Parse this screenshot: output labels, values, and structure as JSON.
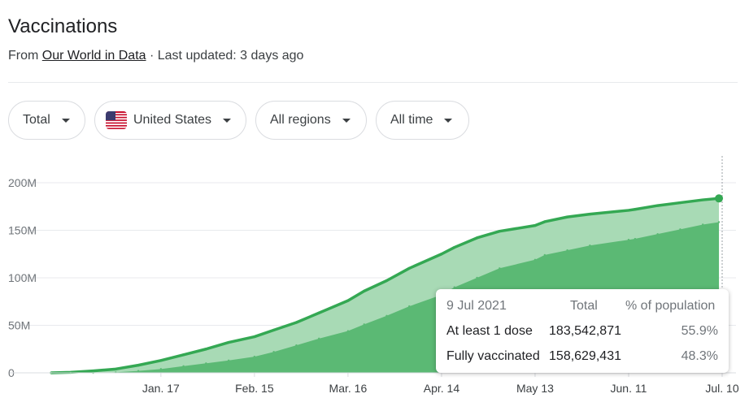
{
  "header": {
    "title": "Vaccinations",
    "source_prefix": "From",
    "source_link": "Our World in Data",
    "updated": "· Last updated: 3 days ago"
  },
  "filters": {
    "metric": "Total",
    "country": "United States",
    "region": "All regions",
    "range": "All time"
  },
  "colors": {
    "at_least_one_dose": "#34a853",
    "at_least_one_dose_fill": "#a8dab5",
    "fully_vaccinated": "#5bb974"
  },
  "tooltip": {
    "date": "9 Jul 2021",
    "col_total": "Total",
    "col_pct": "% of population",
    "rows": [
      {
        "label": "At least 1 dose",
        "total": "183,542,871",
        "pct": "55.9%"
      },
      {
        "label": "Fully vaccinated",
        "total": "158,629,431",
        "pct": "48.3%"
      }
    ]
  },
  "chart_data": {
    "type": "area",
    "x": [
      "2020-12-14",
      "2020-12-20",
      "2020-12-27",
      "2021-01-03",
      "2021-01-10",
      "2021-01-17",
      "2021-01-24",
      "2021-01-31",
      "2021-02-07",
      "2021-02-15",
      "2021-02-21",
      "2021-02-28",
      "2021-03-07",
      "2021-03-16",
      "2021-03-21",
      "2021-03-28",
      "2021-04-04",
      "2021-04-14",
      "2021-04-18",
      "2021-04-25",
      "2021-05-02",
      "2021-05-13",
      "2021-05-16",
      "2021-05-23",
      "2021-05-30",
      "2021-06-11",
      "2021-06-13",
      "2021-06-20",
      "2021-06-27",
      "2021-07-04",
      "2021-07-09"
    ],
    "series": [
      {
        "name": "At least 1 dose",
        "values": [
          0,
          0.5,
          2,
          4,
          8,
          13,
          19,
          25,
          32,
          38,
          45,
          53,
          63,
          76,
          86,
          97,
          110,
          125,
          132,
          142,
          149,
          155,
          159,
          164,
          167,
          171,
          172,
          176,
          179,
          182,
          183.5
        ]
      },
      {
        "name": "Fully vaccinated",
        "values": [
          0,
          0,
          0,
          0.5,
          2,
          4,
          7,
          10,
          13,
          17,
          22,
          29,
          36,
          44,
          51,
          60,
          70,
          82,
          90,
          100,
          110,
          119,
          124,
          129,
          134,
          140,
          141,
          146,
          151,
          156,
          158.6
        ]
      }
    ],
    "yticks": [
      "0",
      "50M",
      "100M",
      "150M",
      "200M"
    ],
    "ytick_values": [
      0,
      50,
      100,
      150,
      200
    ],
    "xticks": [
      {
        "label": "Jan. 17",
        "date": "2021-01-17"
      },
      {
        "label": "Feb. 15",
        "date": "2021-02-15"
      },
      {
        "label": "Mar. 16",
        "date": "2021-03-16"
      },
      {
        "label": "Apr. 14",
        "date": "2021-04-14"
      },
      {
        "label": "May 13",
        "date": "2021-05-13"
      },
      {
        "label": "Jun. 11",
        "date": "2021-06-11"
      },
      {
        "label": "Jul. 10",
        "date": "2021-07-10"
      }
    ],
    "ylim": [
      0,
      200
    ],
    "y_unit": "M",
    "grid": true
  }
}
